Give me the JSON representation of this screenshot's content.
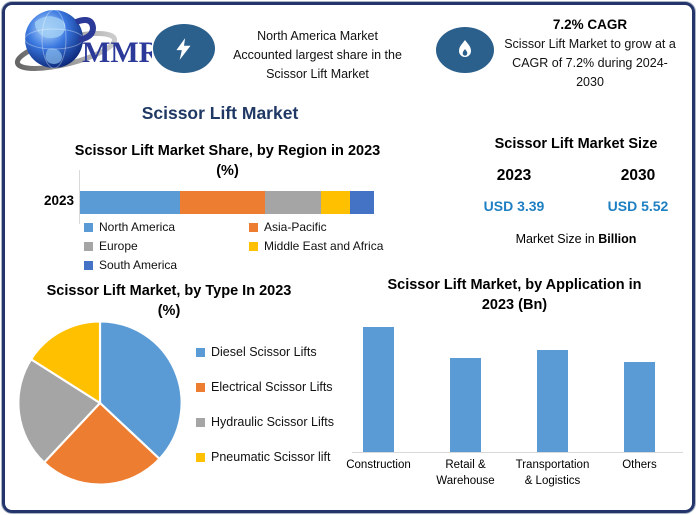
{
  "colors": {
    "frame_border": "#24356B",
    "main_title": "#1F3864",
    "icon_circle": "#2B5F8C",
    "usd_value": "#1E7FC2",
    "axis_gray": "#D9D9D9"
  },
  "top": {
    "logo_text": "MMR",
    "fact1": {
      "icon": "lightning-icon",
      "lines": [
        "North America Market",
        "Accounted largest share in the",
        "Scissor Lift Market"
      ]
    },
    "fact2": {
      "icon": "flame-icon",
      "title": "7.2% CAGR",
      "lines": [
        "Scissor Lift Market to grow at a",
        "CAGR of 7.2% during 2024-",
        "2030"
      ]
    }
  },
  "main_title": "Scissor Lift Market",
  "market_size_panel": {
    "title": "Scissor Lift Market Size",
    "columns": [
      {
        "year": "2023",
        "value": "USD 3.39"
      },
      {
        "year": "2030",
        "value": "USD 5.52"
      }
    ],
    "footnote_prefix": "Market Size in ",
    "footnote_bold": "Billion"
  },
  "chart_data": [
    {
      "id": "region_share",
      "type": "bar",
      "subtype": "stacked-horizontal",
      "title": "Scissor Lift Market Share, by Region in 2023 (%)",
      "title_lines": [
        "Scissor Lift Market Share, by Region in 2023",
        "(%)"
      ],
      "categories": [
        "2023"
      ],
      "series": [
        {
          "name": "North America",
          "color": "#5B9BD5",
          "values": [
            34
          ]
        },
        {
          "name": "Asia-Pacific",
          "color": "#ED7D31",
          "values": [
            29
          ]
        },
        {
          "name": "Europe",
          "color": "#A5A5A5",
          "values": [
            19
          ]
        },
        {
          "name": "Middle East and Africa",
          "color": "#FFC000",
          "values": [
            10
          ]
        },
        {
          "name": "South America",
          "color": "#4472C4",
          "values": [
            8
          ]
        }
      ],
      "xlim": [
        0,
        100
      ],
      "legend_position": "bottom",
      "note": "segment values estimated from bar proportions; no data labels shown"
    },
    {
      "id": "type_share",
      "type": "pie",
      "title": "Scissor Lift Market, by Type In 2023 (%)",
      "title_lines": [
        "Scissor Lift Market, by Type In 2023",
        "(%)"
      ],
      "slices": [
        {
          "name": "Diesel Scissor Lifts",
          "color": "#5B9BD5",
          "value": 37
        },
        {
          "name": "Electrical Scissor Lifts",
          "color": "#ED7D31",
          "value": 25
        },
        {
          "name": "Hydraulic Scissor Lifts",
          "color": "#A5A5A5",
          "value": 22
        },
        {
          "name": "Pneumatic Scissor lift",
          "color": "#FFC000",
          "value": 16
        }
      ],
      "start_angle_deg": 0,
      "direction": "clockwise",
      "legend_position": "right",
      "note": "slice values estimated from angles; no data labels shown"
    },
    {
      "id": "application",
      "type": "bar",
      "title": "Scissor Lift Market, by Application in 2023 (Bn)",
      "title_lines": [
        "Scissor Lift Market, by Application in",
        "2023 (Bn)"
      ],
      "categories": [
        [
          "Construction"
        ],
        [
          "Retail &",
          "Warehouse"
        ],
        [
          "Transportation",
          "& Logistics"
        ],
        [
          "Others"
        ]
      ],
      "values": [
        1.0,
        0.75,
        0.81,
        0.72
      ],
      "bar_color": "#5B9BD5",
      "ylim": [
        0,
        1.06
      ],
      "grid": false,
      "note": "no y-axis tick labels visible; values are relative bar heights (max = 1.0)"
    }
  ]
}
